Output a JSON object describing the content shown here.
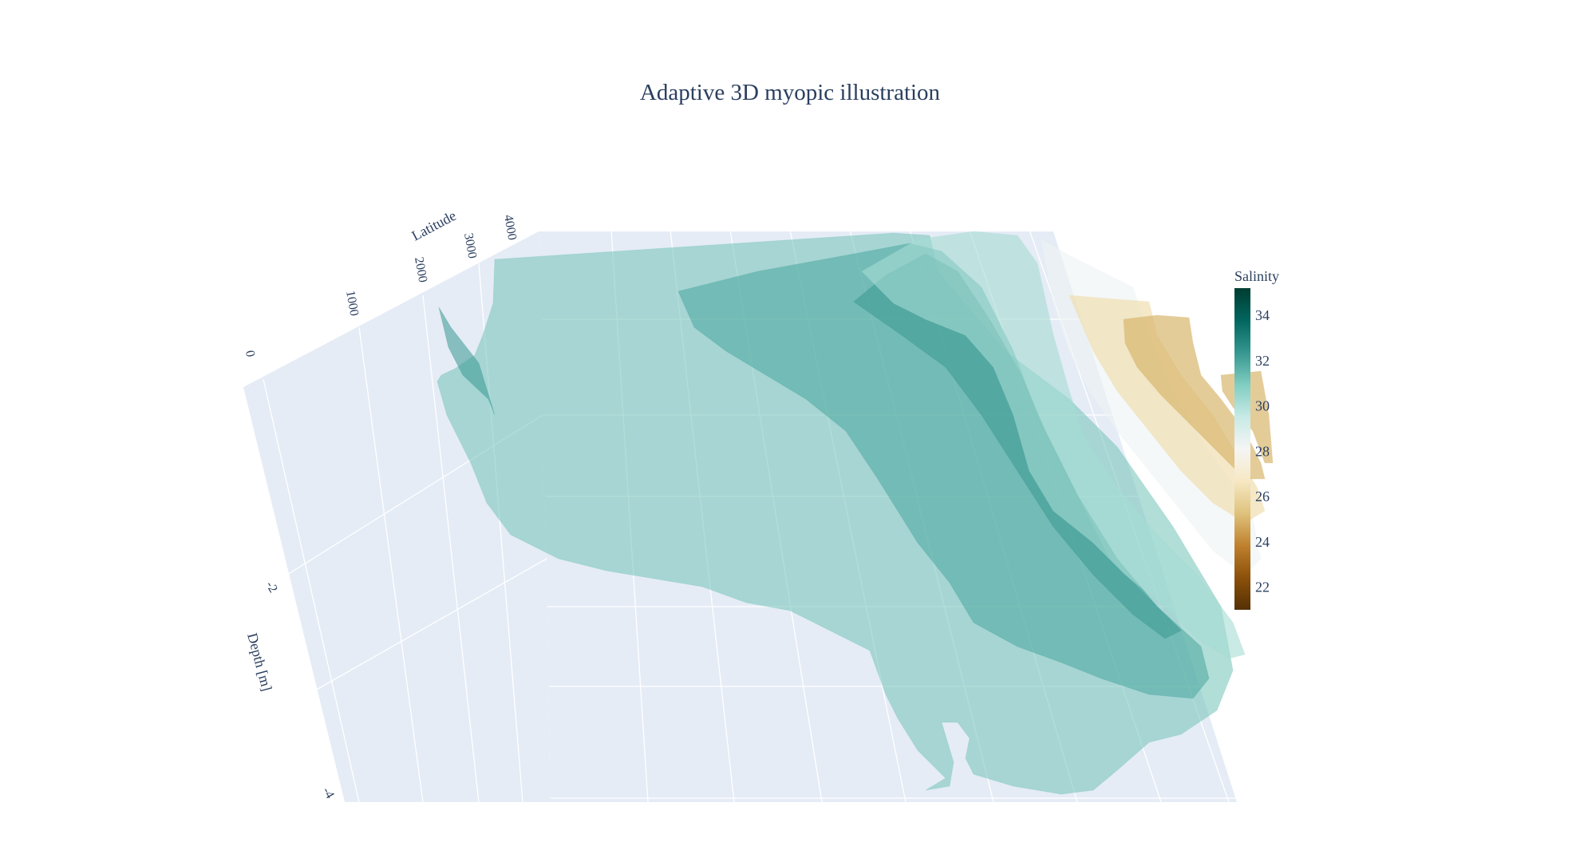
{
  "chart_data": {
    "type": "isosurface",
    "title": "Adaptive 3D myopic illustration",
    "axes": {
      "y": {
        "label": "Latitude",
        "ticks": [
          "0",
          "1000",
          "2000",
          "3000",
          "4000"
        ]
      },
      "z": {
        "label": "Depth [m]",
        "ticks": [
          "-2",
          "-4"
        ]
      }
    },
    "colorbar": {
      "title": "Salinity",
      "ticks": [
        34,
        32,
        30,
        28,
        26,
        24,
        22
      ],
      "range": [
        21,
        35.2
      ],
      "colorscale": [
        "#543005",
        "#8c510a",
        "#bf812d",
        "#dfc27d",
        "#f6e8c3",
        "#f5f5f5",
        "#c7eae5",
        "#80cdc1",
        "#35978f",
        "#01665e",
        "#003c30"
      ]
    },
    "surfaces": [
      {
        "value": 31.2,
        "opacity": 0.55
      },
      {
        "value": 32.3,
        "opacity": 0.55
      },
      {
        "value": 32.0,
        "opacity": 0.55
      },
      {
        "value": 30.2,
        "opacity": 0.6
      },
      {
        "value": 28.3,
        "opacity": 0.6
      },
      {
        "value": 26.3,
        "opacity": 0.7
      },
      {
        "value": 25.0,
        "opacity": 0.7
      }
    ],
    "background_color": "#e5ecf6",
    "grid_color": "#ffffff",
    "font_color": "#2a3f5f"
  }
}
